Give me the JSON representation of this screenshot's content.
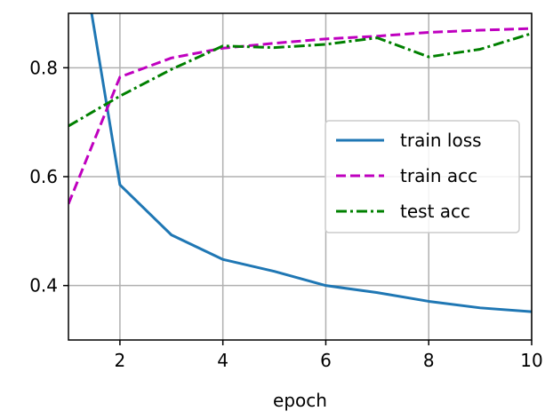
{
  "chart_data": {
    "type": "line",
    "xlabel": "epoch",
    "ylabel": "",
    "title": "",
    "xlim": [
      1,
      10
    ],
    "ylim": [
      0.3,
      0.9
    ],
    "xticks": [
      2,
      4,
      6,
      8,
      10
    ],
    "yticks": [
      0.4,
      0.6,
      0.8
    ],
    "xtick_labels": [
      "2",
      "4",
      "6",
      "8",
      "10"
    ],
    "ytick_labels": [
      "0.4",
      "0.6",
      "0.8"
    ],
    "grid": true,
    "legend_position": "center-right",
    "series": [
      {
        "name": "train loss",
        "color": "#1f77b4",
        "dash": "solid",
        "x": [
          1.45,
          2,
          3,
          4,
          5,
          6,
          7,
          8,
          9,
          10
        ],
        "y": [
          0.9,
          0.585,
          0.493,
          0.448,
          0.426,
          0.4,
          0.387,
          0.371,
          0.359,
          0.352
        ]
      },
      {
        "name": "train acc",
        "color": "#bf00bf",
        "dash": "dashed",
        "x": [
          1,
          2,
          3,
          4,
          5,
          6,
          7,
          8,
          9,
          10
        ],
        "y": [
          0.55,
          0.783,
          0.818,
          0.836,
          0.845,
          0.853,
          0.858,
          0.865,
          0.869,
          0.872
        ]
      },
      {
        "name": "test acc",
        "color": "#008000",
        "dash": "dashdot",
        "x": [
          1,
          2,
          3,
          4,
          5,
          6,
          7,
          8,
          9,
          10
        ],
        "y": [
          0.693,
          0.748,
          0.797,
          0.84,
          0.837,
          0.843,
          0.855,
          0.82,
          0.834,
          0.863
        ]
      }
    ]
  }
}
